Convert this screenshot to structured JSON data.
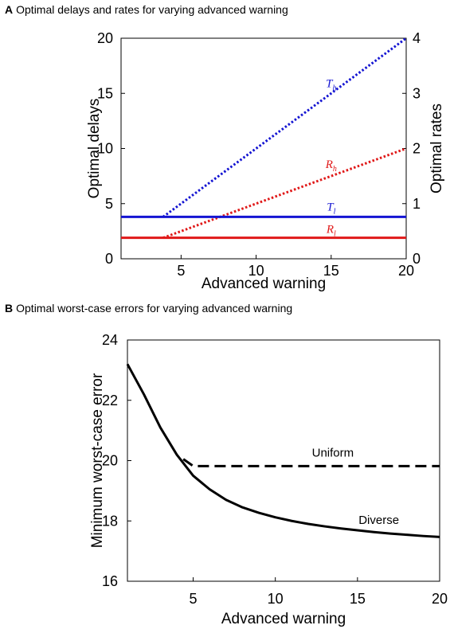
{
  "figure": {
    "panel_a": {
      "letter": "A",
      "title": "Optimal delays and rates for varying advanced warning"
    },
    "panel_b": {
      "letter": "B",
      "title": "Optimal worst-case errors for varying advanced warning"
    }
  },
  "chart_data": [
    {
      "type": "line",
      "title": "Optimal delays and rates for varying advanced warning",
      "xlabel": "Advanced warning",
      "ylabel_left": "Optimal delays",
      "ylabel_right": "Optimal rates",
      "xlim": [
        1,
        20
      ],
      "ylim_left": [
        0,
        20
      ],
      "ylim_right": [
        0,
        4
      ],
      "xticks": [
        5,
        10,
        15,
        20
      ],
      "yticks_left": [
        0,
        5,
        10,
        15,
        20
      ],
      "yticks_right": [
        0,
        1,
        2,
        3,
        4
      ],
      "grid": false,
      "series": [
        {
          "label_main": "T",
          "label_sub": "h",
          "axis": "left",
          "color": "#1414d2",
          "style": "dotted",
          "x": [
            3.8,
            20
          ],
          "y": [
            3.8,
            20
          ]
        },
        {
          "label_main": "R",
          "label_sub": "h",
          "axis": "left",
          "color": "#e01818",
          "style": "dotted",
          "x": [
            3.8,
            20
          ],
          "y": [
            1.9,
            10
          ]
        },
        {
          "label_main": "T",
          "label_sub": "l",
          "axis": "left",
          "color": "#1414d2",
          "style": "solid",
          "x": [
            1,
            20
          ],
          "y": [
            3.8,
            3.8
          ]
        },
        {
          "label_main": "R",
          "label_sub": "l",
          "axis": "left",
          "color": "#e01818",
          "style": "solid",
          "x": [
            1,
            20
          ],
          "y": [
            1.9,
            1.9
          ]
        }
      ]
    },
    {
      "type": "line",
      "title": "Optimal worst-case errors for varying advanced warning",
      "xlabel": "Advanced warning",
      "ylabel": "Minimum worst-case error",
      "xlim": [
        1,
        20
      ],
      "ylim": [
        16,
        24
      ],
      "xticks": [
        5,
        10,
        15,
        20
      ],
      "yticks": [
        16,
        18,
        20,
        22,
        24
      ],
      "grid": false,
      "series": [
        {
          "label": "Diverse",
          "color": "#000000",
          "style": "solid",
          "x": [
            1,
            2,
            3,
            4,
            5,
            6,
            7,
            8,
            9,
            10,
            11,
            12,
            13,
            14,
            15,
            16,
            17,
            18,
            19,
            20
          ],
          "y": [
            23.2,
            22.2,
            21.1,
            20.2,
            19.5,
            19.05,
            18.7,
            18.45,
            18.27,
            18.12,
            18.0,
            17.9,
            17.82,
            17.75,
            17.69,
            17.63,
            17.58,
            17.54,
            17.5,
            17.47
          ]
        },
        {
          "label": "Uniform",
          "color": "#000000",
          "style": "dashed",
          "x": [
            4.4,
            5,
            20
          ],
          "y": [
            20.05,
            19.82,
            19.82
          ]
        }
      ]
    }
  ]
}
